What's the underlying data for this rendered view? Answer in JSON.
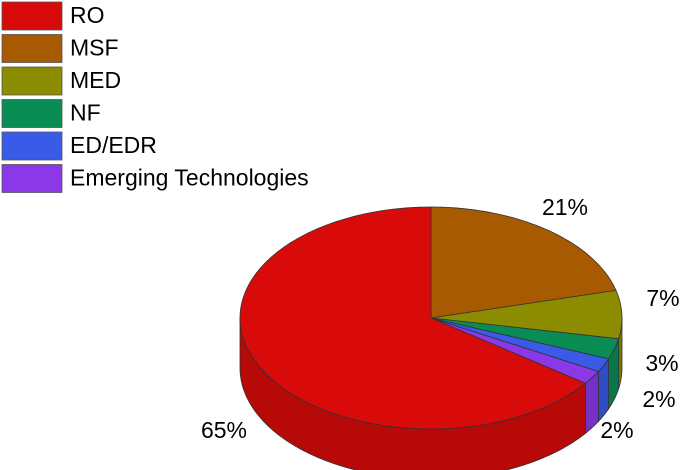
{
  "chart_data": {
    "type": "pie3d",
    "categories": [
      "RO",
      "MSF",
      "MED",
      "NF",
      "ED/EDR",
      "Emerging Technologies"
    ],
    "values": [
      65,
      21,
      7,
      3,
      2,
      2
    ],
    "value_labels": [
      "65%",
      "21%",
      "7%",
      "3%",
      "2%",
      "2%"
    ],
    "colors": [
      "#d80a0a",
      "#a85a00",
      "#8c8c00",
      "#0a8c55",
      "#3a5ae8",
      "#8a38e8"
    ]
  }
}
